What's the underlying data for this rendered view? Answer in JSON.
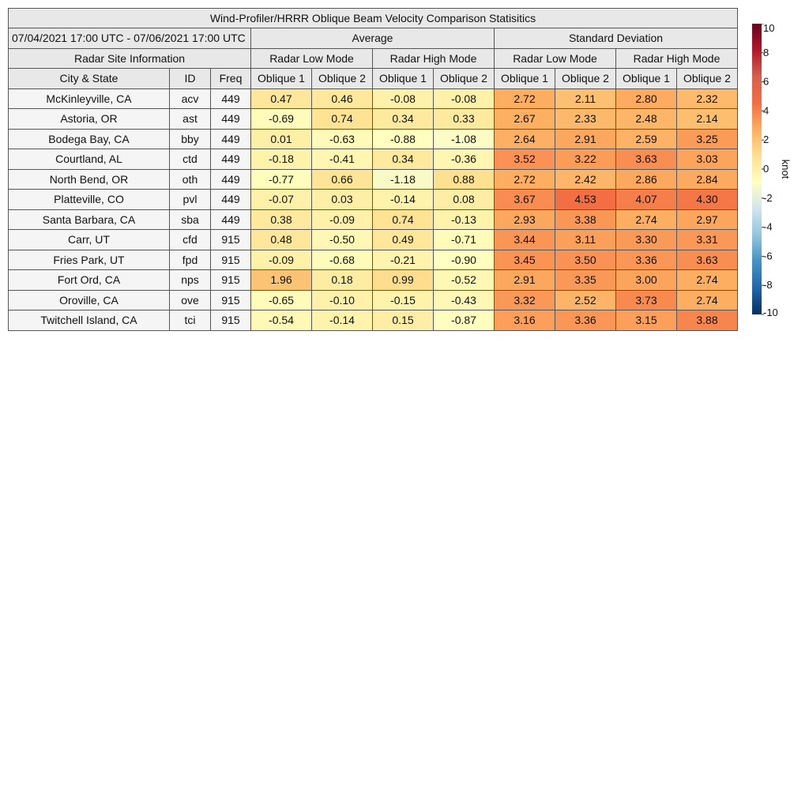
{
  "title": "Wind-Profiler/HRRR Oblique Beam Velocity Comparison Statisitics",
  "date_range": "07/04/2021 17:00 UTC - 07/06/2021 17:00 UTC",
  "groups": {
    "average": "Average",
    "std": "Standard Deviation"
  },
  "site_info_label": "Radar Site Information",
  "modes": {
    "low": "Radar Low Mode",
    "high": "Radar High Mode"
  },
  "columns": {
    "city": "City & State",
    "id": "ID",
    "freq": "Freq",
    "ob1": "Oblique 1",
    "ob2": "Oblique 2"
  },
  "colorbar": {
    "label": "knot",
    "ticks": [
      "10",
      "8",
      "6",
      "4",
      "2",
      "0",
      "-2",
      "-4",
      "-6",
      "-8",
      "-10"
    ],
    "min": -10,
    "max": 10,
    "colors": [
      "#053061",
      "#2166ac",
      "#4393c3",
      "#92c5de",
      "#d1e5f0",
      "#ffffbf",
      "#fee090",
      "#fdae61",
      "#f46d43",
      "#d6604d",
      "#b2182b",
      "#67001f"
    ]
  },
  "chart_data": {
    "type": "heatmap",
    "title": "Wind-Profiler/HRRR Oblique Beam Velocity Comparison Statisitics",
    "columns": [
      "Average Radar Low Mode Oblique 1",
      "Average Radar Low Mode Oblique 2",
      "Average Radar High Mode Oblique 1",
      "Average Radar High Mode Oblique 2",
      "Standard Deviation Radar Low Mode Oblique 1",
      "Standard Deviation Radar Low Mode Oblique 2",
      "Standard Deviation Radar High Mode Oblique 1",
      "Standard Deviation Radar High Mode Oblique 2"
    ],
    "unit": "knot",
    "rows": [
      {
        "city": "McKinleyville, CA",
        "id": "acv",
        "freq": "449",
        "values": [
          "0.47",
          "0.46",
          "-0.08",
          "-0.08",
          "2.72",
          "2.11",
          "2.80",
          "2.32"
        ]
      },
      {
        "city": "Astoria, OR",
        "id": "ast",
        "freq": "449",
        "values": [
          "-0.69",
          "0.74",
          "0.34",
          "0.33",
          "2.67",
          "2.33",
          "2.48",
          "2.14"
        ]
      },
      {
        "city": "Bodega Bay, CA",
        "id": "bby",
        "freq": "449",
        "values": [
          "0.01",
          "-0.63",
          "-0.88",
          "-1.08",
          "2.64",
          "2.91",
          "2.59",
          "3.25"
        ]
      },
      {
        "city": "Courtland, AL",
        "id": "ctd",
        "freq": "449",
        "values": [
          "-0.18",
          "-0.41",
          "0.34",
          "-0.36",
          "3.52",
          "3.22",
          "3.63",
          "3.03"
        ]
      },
      {
        "city": "North Bend, OR",
        "id": "oth",
        "freq": "449",
        "values": [
          "-0.77",
          "0.66",
          "-1.18",
          "0.88",
          "2.72",
          "2.42",
          "2.86",
          "2.84"
        ]
      },
      {
        "city": "Platteville, CO",
        "id": "pvl",
        "freq": "449",
        "values": [
          "-0.07",
          "0.03",
          "-0.14",
          "0.08",
          "3.67",
          "4.53",
          "4.07",
          "4.30"
        ]
      },
      {
        "city": "Santa Barbara, CA",
        "id": "sba",
        "freq": "449",
        "values": [
          "0.38",
          "-0.09",
          "0.74",
          "-0.13",
          "2.93",
          "3.38",
          "2.74",
          "2.97"
        ]
      },
      {
        "city": "Carr, UT",
        "id": "cfd",
        "freq": "915",
        "values": [
          "0.48",
          "-0.50",
          "0.49",
          "-0.71",
          "3.44",
          "3.11",
          "3.30",
          "3.31"
        ]
      },
      {
        "city": "Fries Park, UT",
        "id": "fpd",
        "freq": "915",
        "values": [
          "-0.09",
          "-0.68",
          "-0.21",
          "-0.90",
          "3.45",
          "3.50",
          "3.36",
          "3.63"
        ]
      },
      {
        "city": "Fort Ord, CA",
        "id": "nps",
        "freq": "915",
        "values": [
          "1.96",
          "0.18",
          "0.99",
          "-0.52",
          "2.91",
          "3.35",
          "3.00",
          "2.74"
        ]
      },
      {
        "city": "Oroville, CA",
        "id": "ove",
        "freq": "915",
        "values": [
          "-0.65",
          "-0.10",
          "-0.15",
          "-0.43",
          "3.32",
          "2.52",
          "3.73",
          "2.74"
        ]
      },
      {
        "city": "Twitchell Island, CA",
        "id": "tci",
        "freq": "915",
        "values": [
          "-0.54",
          "-0.14",
          "0.15",
          "-0.87",
          "3.16",
          "3.36",
          "3.15",
          "3.88"
        ]
      }
    ]
  }
}
